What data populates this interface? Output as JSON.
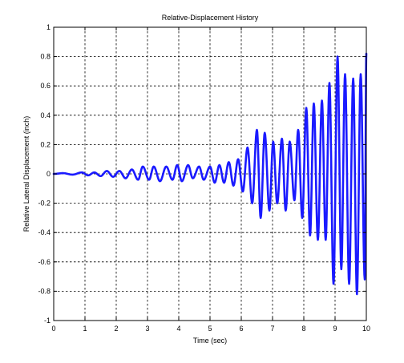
{
  "chart_data": {
    "type": "line",
    "title": "Relative-Displacement History",
    "xlabel": "Time (sec)",
    "ylabel": "Relative Lateral Displacement (inch)",
    "xlim": [
      0,
      10
    ],
    "ylim": [
      -1,
      1
    ],
    "x_ticks": [
      "0",
      "1",
      "2",
      "3",
      "4",
      "5",
      "6",
      "7",
      "8",
      "9",
      "10"
    ],
    "y_ticks": [
      "1",
      "0.8",
      "0.6",
      "0.4",
      "0.2",
      "0",
      "-0.2",
      "-0.4",
      "-0.6",
      "-0.8",
      "-1"
    ],
    "grid": true,
    "series": [
      {
        "color": "#1a1aff",
        "x": [
          0,
          0.3,
          0.6,
          0.9,
          1.1,
          1.3,
          1.5,
          1.7,
          1.9,
          2.1,
          2.3,
          2.5,
          2.7,
          2.85,
          3.05,
          3.2,
          3.4,
          3.6,
          3.8,
          3.95,
          4.1,
          4.3,
          4.45,
          4.65,
          4.8,
          5.0,
          5.15,
          5.3,
          5.45,
          5.6,
          5.75,
          5.9,
          6.05,
          6.2,
          6.35,
          6.5,
          6.62,
          6.75,
          6.9,
          7.02,
          7.15,
          7.3,
          7.42,
          7.55,
          7.7,
          7.82,
          7.95,
          8.08,
          8.2,
          8.32,
          8.45,
          8.58,
          8.7,
          8.82,
          8.95,
          9.08,
          9.2,
          9.32,
          9.45,
          9.58,
          9.7,
          9.82,
          9.95,
          10.0
        ],
        "y": [
          0,
          0.005,
          -0.005,
          0.01,
          -0.01,
          0.01,
          -0.015,
          0.02,
          -0.02,
          0.02,
          -0.03,
          0.03,
          -0.04,
          0.05,
          -0.04,
          0.05,
          -0.05,
          0.05,
          -0.04,
          0.06,
          -0.05,
          0.06,
          -0.03,
          0.05,
          -0.04,
          0.05,
          -0.06,
          0.06,
          -0.06,
          0.08,
          -0.08,
          0.1,
          -0.12,
          0.18,
          -0.2,
          0.3,
          -0.3,
          0.28,
          -0.25,
          0.22,
          -0.2,
          0.24,
          -0.25,
          0.22,
          -0.18,
          0.3,
          -0.3,
          0.45,
          -0.42,
          0.48,
          -0.45,
          0.5,
          -0.45,
          0.62,
          -0.75,
          0.8,
          -0.65,
          0.68,
          -0.75,
          0.65,
          -0.82,
          0.68,
          -0.72,
          0.82
        ]
      }
    ]
  }
}
